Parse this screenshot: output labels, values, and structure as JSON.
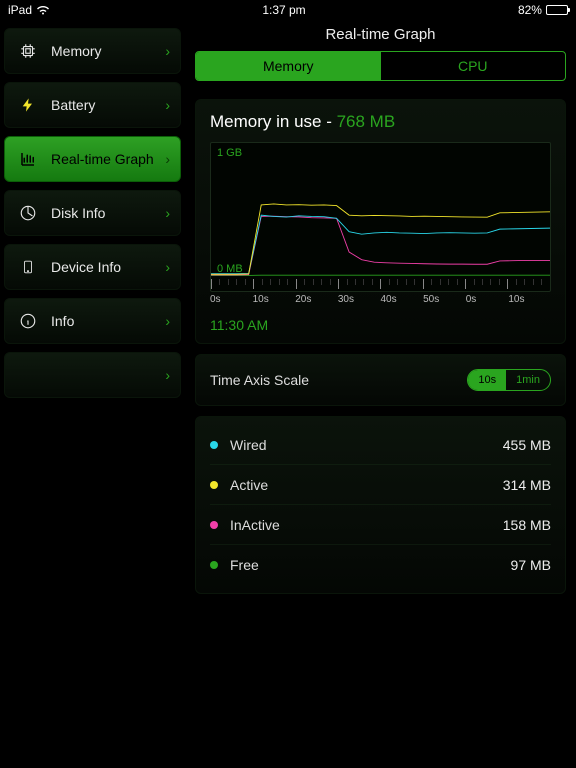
{
  "status": {
    "device": "iPad",
    "time": "1:37 pm",
    "battery_pct": "82%",
    "battery_level": 82
  },
  "page": {
    "title": "Real-time Graph"
  },
  "tabs": {
    "memory": "Memory",
    "cpu": "CPU",
    "active": "memory"
  },
  "sidebar": {
    "items": [
      {
        "label": "Memory",
        "icon": "cpu",
        "active": false
      },
      {
        "label": "Battery",
        "icon": "bolt",
        "active": false
      },
      {
        "label": "Real-time Graph",
        "icon": "chart",
        "active": true
      },
      {
        "label": "Disk Info",
        "icon": "disk",
        "active": false
      },
      {
        "label": "Device Info",
        "icon": "device",
        "active": false
      },
      {
        "label": "Info",
        "icon": "info",
        "active": false
      },
      {
        "label": "",
        "icon": "",
        "active": false
      }
    ]
  },
  "colors": {
    "accent": "#2aa51f",
    "wired": "#29d6e8",
    "active": "#f2e52b",
    "inactive": "#ef3fa8",
    "free": "#2aa51f",
    "bg": "#000000",
    "card_bg": "#0b130b",
    "grid": "#1a2a1a"
  },
  "memory": {
    "header_prefix": "Memory in use - ",
    "header_value": "768 MB",
    "timestamp": "11:30 AM",
    "y_top": "1 GB",
    "y_bot": "0 MB",
    "y_max_mb": 1024,
    "x_labels": [
      "0s",
      "10s",
      "20s",
      "30s",
      "40s",
      "50s",
      "0s",
      "10s"
    ],
    "series": {
      "wired": [
        20,
        20,
        20,
        22,
        480,
        470,
        465,
        475,
        470,
        468,
        455,
        350,
        330,
        340,
        345,
        340,
        338,
        335,
        340,
        342,
        340,
        338,
        340,
        370,
        372,
        374,
        376,
        378
      ],
      "active": [
        15,
        15,
        15,
        18,
        560,
        568,
        560,
        562,
        558,
        560,
        555,
        480,
        475,
        478,
        476,
        474,
        470,
        472,
        470,
        468,
        466,
        465,
        464,
        498,
        500,
        502,
        504,
        506
      ],
      "inactive": [
        10,
        10,
        10,
        12,
        470,
        472,
        468,
        466,
        460,
        458,
        455,
        190,
        130,
        110,
        105,
        102,
        100,
        98,
        96,
        95,
        95,
        94,
        94,
        120,
        122,
        124,
        124,
        124
      ],
      "free": [
        5,
        5,
        5,
        6,
        8,
        8,
        8,
        8,
        8,
        8,
        8,
        8,
        8,
        8,
        8,
        8,
        8,
        8,
        8,
        8,
        8,
        8,
        8,
        8,
        8,
        8,
        8,
        8
      ]
    }
  },
  "scale": {
    "label": "Time Axis Scale",
    "opt1": "10s",
    "opt2": "1min",
    "active": "10s"
  },
  "legend": [
    {
      "key": "wired",
      "label": "Wired",
      "value": "455 MB"
    },
    {
      "key": "active",
      "label": "Active",
      "value": "314 MB"
    },
    {
      "key": "inactive",
      "label": "InActive",
      "value": "158 MB"
    },
    {
      "key": "free",
      "label": "Free",
      "value": "97 MB"
    }
  ]
}
